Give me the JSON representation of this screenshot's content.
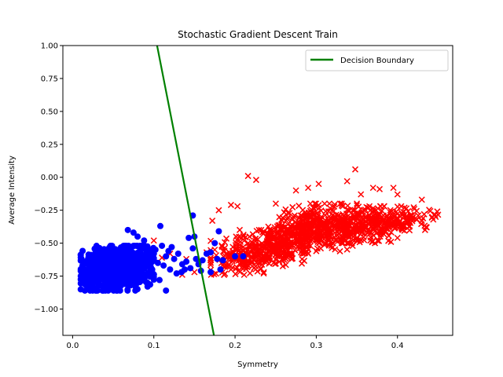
{
  "chart_data": {
    "type": "scatter",
    "title": "Stochastic Gradient Descent Train",
    "xlabel": "Symmetry",
    "ylabel": "Average Intensity",
    "xlim": [
      -0.012,
      0.468
    ],
    "ylim": [
      -1.2,
      1.0
    ],
    "xticks": [
      0.0,
      0.1,
      0.2,
      0.3,
      0.4
    ],
    "xtick_labels": [
      "0.0",
      "0.1",
      "0.2",
      "0.3",
      "0.4"
    ],
    "yticks": [
      -1.0,
      -0.75,
      -0.5,
      -0.25,
      0.0,
      0.25,
      0.5,
      0.75,
      1.0
    ],
    "ytick_labels": [
      "−1.00",
      "−0.75",
      "−0.50",
      "−0.25",
      "0.00",
      "0.25",
      "0.50",
      "0.75",
      "1.00"
    ],
    "grid": false,
    "legend_position": "top-right",
    "series": [
      {
        "marker": "circle",
        "color": "#0000ff",
        "clusters": [
          {
            "x_range": [
              0.01,
              0.1
            ],
            "y_range": [
              -0.86,
              -0.52
            ],
            "count": 900,
            "seed": 7
          }
        ],
        "points": [
          [
            0.075,
            -0.42
          ],
          [
            0.068,
            -0.4
          ],
          [
            0.08,
            -0.45
          ],
          [
            0.108,
            -0.37
          ],
          [
            0.088,
            -0.48
          ],
          [
            0.095,
            -0.56
          ],
          [
            0.102,
            -0.55
          ],
          [
            0.11,
            -0.52
          ],
          [
            0.118,
            -0.56
          ],
          [
            0.122,
            -0.53
          ],
          [
            0.115,
            -0.6
          ],
          [
            0.125,
            -0.62
          ],
          [
            0.13,
            -0.58
          ],
          [
            0.135,
            -0.66
          ],
          [
            0.14,
            -0.64
          ],
          [
            0.112,
            -0.67
          ],
          [
            0.12,
            -0.7
          ],
          [
            0.105,
            -0.65
          ],
          [
            0.1,
            -0.74
          ],
          [
            0.128,
            -0.73
          ],
          [
            0.138,
            -0.7
          ],
          [
            0.145,
            -0.69
          ],
          [
            0.15,
            -0.45
          ],
          [
            0.148,
            -0.54
          ],
          [
            0.152,
            -0.62
          ],
          [
            0.143,
            -0.46
          ],
          [
            0.155,
            -0.66
          ],
          [
            0.16,
            -0.63
          ],
          [
            0.165,
            -0.58
          ],
          [
            0.158,
            -0.71
          ],
          [
            0.18,
            -0.41
          ],
          [
            0.175,
            -0.5
          ],
          [
            0.17,
            -0.57
          ],
          [
            0.178,
            -0.62
          ],
          [
            0.185,
            -0.63
          ],
          [
            0.182,
            -0.7
          ],
          [
            0.17,
            -0.72
          ],
          [
            0.2,
            -0.6
          ],
          [
            0.21,
            -0.6
          ],
          [
            0.148,
            -0.29
          ],
          [
            0.115,
            -0.86
          ],
          [
            0.092,
            -0.8
          ],
          [
            0.098,
            -0.7
          ],
          [
            0.107,
            -0.78
          ],
          [
            0.134,
            -0.72
          ]
        ]
      },
      {
        "marker": "x",
        "color": "#ff0000",
        "clusters": [
          {
            "x_range": [
              0.17,
              0.29
            ],
            "y_range": [
              -0.74,
              -0.4
            ],
            "count": 380,
            "seed": 11
          },
          {
            "x_range": [
              0.24,
              0.35
            ],
            "y_range": [
              -0.58,
              -0.2
            ],
            "count": 420,
            "seed": 23
          },
          {
            "x_range": [
              0.3,
              0.42
            ],
            "y_range": [
              -0.5,
              -0.22
            ],
            "count": 300,
            "seed": 31
          },
          {
            "x_range": [
              0.35,
              0.45
            ],
            "y_range": [
              -0.42,
              -0.24
            ],
            "count": 90,
            "seed": 41
          }
        ],
        "points": [
          [
            0.216,
            0.01
          ],
          [
            0.226,
            -0.02
          ],
          [
            0.348,
            0.06
          ],
          [
            0.338,
            -0.03
          ],
          [
            0.303,
            -0.05
          ],
          [
            0.275,
            -0.1
          ],
          [
            0.29,
            -0.08
          ],
          [
            0.37,
            -0.08
          ],
          [
            0.378,
            -0.09
          ],
          [
            0.395,
            -0.08
          ],
          [
            0.355,
            -0.13
          ],
          [
            0.4,
            -0.13
          ],
          [
            0.43,
            -0.17
          ],
          [
            0.436,
            -0.38
          ],
          [
            0.434,
            -0.4
          ],
          [
            0.449,
            -0.26
          ],
          [
            0.447,
            -0.3
          ],
          [
            0.4,
            -0.46
          ],
          [
            0.392,
            -0.49
          ],
          [
            0.405,
            -0.27
          ],
          [
            0.195,
            -0.21
          ],
          [
            0.203,
            -0.22
          ],
          [
            0.18,
            -0.25
          ],
          [
            0.172,
            -0.33
          ],
          [
            0.165,
            -0.57
          ],
          [
            0.15,
            -0.72
          ],
          [
            0.135,
            -0.74
          ],
          [
            0.09,
            -0.67
          ],
          [
            0.055,
            -0.65
          ],
          [
            0.03,
            -0.82
          ],
          [
            0.018,
            -0.86
          ],
          [
            0.1,
            -0.48
          ],
          [
            0.12,
            -0.58
          ],
          [
            0.11,
            -0.61
          ],
          [
            0.14,
            -0.62
          ],
          [
            0.188,
            -0.68
          ],
          [
            0.195,
            -0.7
          ],
          [
            0.205,
            -0.62
          ],
          [
            0.17,
            -0.63
          ],
          [
            0.175,
            -0.55
          ]
        ]
      },
      {
        "name": "Decision Boundary",
        "marker": "line",
        "color": "#008000",
        "x": [
          0.104,
          0.174
        ],
        "y": [
          1.0,
          -1.2
        ]
      }
    ]
  }
}
